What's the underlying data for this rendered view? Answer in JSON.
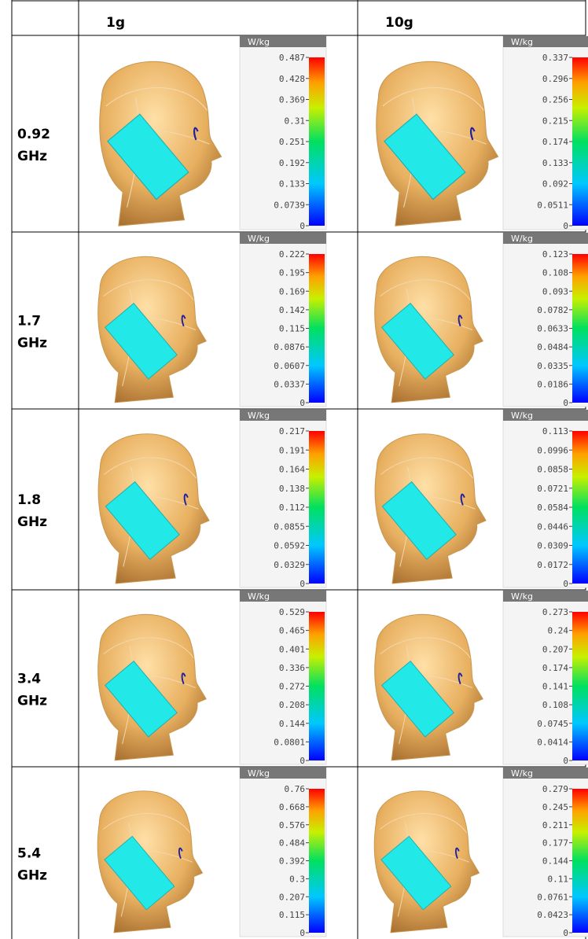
{
  "table": {
    "header": [
      "1g",
      "10g"
    ],
    "rows": [
      {
        "label": [
          "0.92",
          "GHz"
        ],
        "cells": [
          {
            "unit": "W/kg",
            "ticks": [
              "0.487",
              "0.428",
              "0.369",
              "0.31",
              "0.251",
              "0.192",
              "0.133",
              "0.0739",
              "0"
            ]
          },
          {
            "unit": "W/kg",
            "ticks": [
              "0.337",
              "0.296",
              "0.256",
              "0.215",
              "0.174",
              "0.133",
              "0.092",
              "0.0511",
              "0"
            ]
          }
        ]
      },
      {
        "label": [
          "1.7",
          "GHz"
        ],
        "cells": [
          {
            "unit": "W/kg",
            "ticks": [
              "0.222",
              "0.195",
              "0.169",
              "0.142",
              "0.115",
              "0.0876",
              "0.0607",
              "0.0337",
              "0"
            ]
          },
          {
            "unit": "W/kg",
            "ticks": [
              "0.123",
              "0.108",
              "0.093",
              "0.0782",
              "0.0633",
              "0.0484",
              "0.0335",
              "0.0186",
              "0"
            ]
          }
        ]
      },
      {
        "label": [
          "1.8",
          "GHz"
        ],
        "cells": [
          {
            "unit": "W/kg",
            "ticks": [
              "0.217",
              "0.191",
              "0.164",
              "0.138",
              "0.112",
              "0.0855",
              "0.0592",
              "0.0329",
              "0"
            ]
          },
          {
            "unit": "W/kg",
            "ticks": [
              "0.113",
              "0.0996",
              "0.0858",
              "0.0721",
              "0.0584",
              "0.0446",
              "0.0309",
              "0.0172",
              "0"
            ]
          }
        ]
      },
      {
        "label": [
          "3.4",
          "GHz"
        ],
        "cells": [
          {
            "unit": "W/kg",
            "ticks": [
              "0.529",
              "0.465",
              "0.401",
              "0.336",
              "0.272",
              "0.208",
              "0.144",
              "0.0801",
              "0"
            ]
          },
          {
            "unit": "W/kg",
            "ticks": [
              "0.273",
              "0.24",
              "0.207",
              "0.174",
              "0.141",
              "0.108",
              "0.0745",
              "0.0414",
              "0"
            ]
          }
        ]
      },
      {
        "label": [
          "5.4",
          "GHz"
        ],
        "cells": [
          {
            "unit": "W/kg",
            "ticks": [
              "0.76",
              "0.668",
              "0.576",
              "0.484",
              "0.392",
              "0.3",
              "0.207",
              "0.115",
              "0"
            ]
          },
          {
            "unit": "W/kg",
            "ticks": [
              "0.279",
              "0.245",
              "0.211",
              "0.177",
              "0.144",
              "0.11",
              "0.0761",
              "0.0423",
              "0"
            ]
          }
        ]
      }
    ]
  }
}
